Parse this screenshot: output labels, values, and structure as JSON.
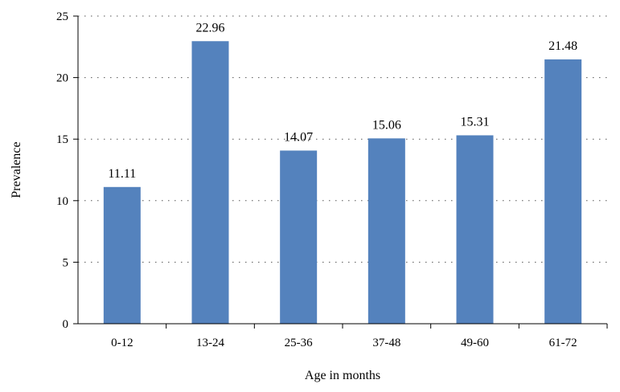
{
  "chart_data": {
    "type": "bar",
    "title": "",
    "xlabel": "Age in months",
    "ylabel": "Prevalence",
    "categories": [
      "0-12",
      "13-24",
      "25-36",
      "37-48",
      "49-60",
      "61-72"
    ],
    "values": [
      11.11,
      22.96,
      14.07,
      15.06,
      15.31,
      21.48
    ],
    "data_labels": [
      "11.11",
      "22.96",
      "14.07",
      "15.06",
      "15.31",
      "21.48"
    ],
    "ylim": [
      0,
      25
    ],
    "yticks": [
      0,
      5,
      10,
      15,
      20,
      25
    ],
    "ytick_labels": [
      "0",
      "5",
      "10",
      "15",
      "20",
      "25"
    ],
    "grid": "horizontal dotted",
    "legend": "none",
    "colors": {
      "bar": "#5482BD",
      "axis": "#000000",
      "grid": "#555555"
    }
  }
}
